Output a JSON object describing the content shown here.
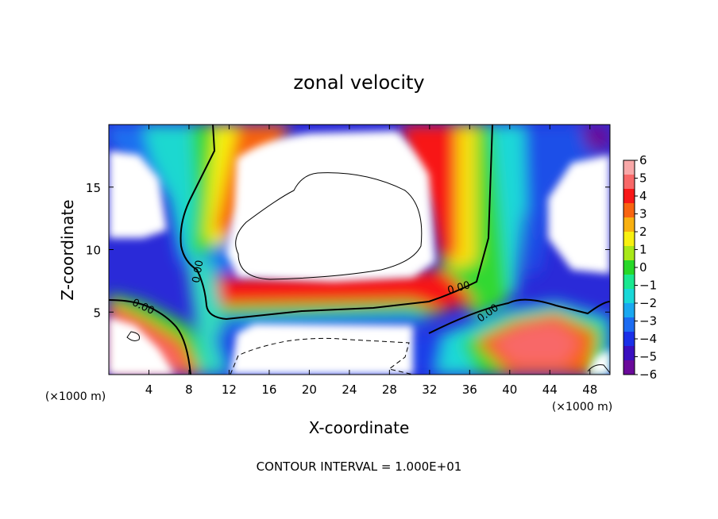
{
  "chart_data": {
    "type": "heatmap",
    "title": "zonal velocity",
    "xlabel": "X-coordinate",
    "ylabel": "Z-coordinate",
    "x_unit_note_left": "(×1000 m)",
    "x_unit_note_right": "(×1000 m)",
    "footer": "CONTOUR INTERVAL = 1.000E+01",
    "xlim": [
      0,
      50
    ],
    "ylim": [
      0,
      20
    ],
    "x_ticks": [
      4,
      8,
      12,
      16,
      20,
      24,
      28,
      32,
      36,
      40,
      44,
      48
    ],
    "x_tick_labels": [
      "4",
      "8",
      "12",
      "16",
      "20",
      "24",
      "28",
      "32",
      "36",
      "40",
      "44",
      "48"
    ],
    "y_ticks": [
      5,
      10,
      15
    ],
    "y_tick_labels": [
      "5",
      "10",
      "15"
    ],
    "colorbar": {
      "min": -6,
      "max": 6,
      "tick_values": [
        6,
        5,
        4,
        3,
        2,
        1,
        0,
        -1,
        -2,
        -3,
        -4,
        -5,
        -6
      ],
      "tick_labels": [
        "6",
        "5",
        "4",
        "3",
        "2",
        "1",
        "0",
        "−1",
        "−2",
        "−3",
        "−4",
        "−5",
        "−6"
      ],
      "colors": [
        "#6a0a9a",
        "#3a0fc0",
        "#1a30e8",
        "#1c6cf2",
        "#1aa8f0",
        "#1ad8d8",
        "#1ae890",
        "#28d828",
        "#a8e818",
        "#f8f010",
        "#f8b010",
        "#f86410",
        "#f81818",
        "#f86868",
        "#f8a8a8"
      ]
    },
    "contour_labels": [
      {
        "text": "0.00",
        "x": 3.3,
        "y": 5.2,
        "angle": 25
      },
      {
        "text": "0.00",
        "x": 9.2,
        "y": 8.2,
        "angle": -80
      },
      {
        "text": "0.00",
        "x": 35.0,
        "y": 6.7,
        "angle": -15
      },
      {
        "text": "0.00",
        "x": 38.0,
        "y": 4.7,
        "angle": -35
      }
    ]
  }
}
